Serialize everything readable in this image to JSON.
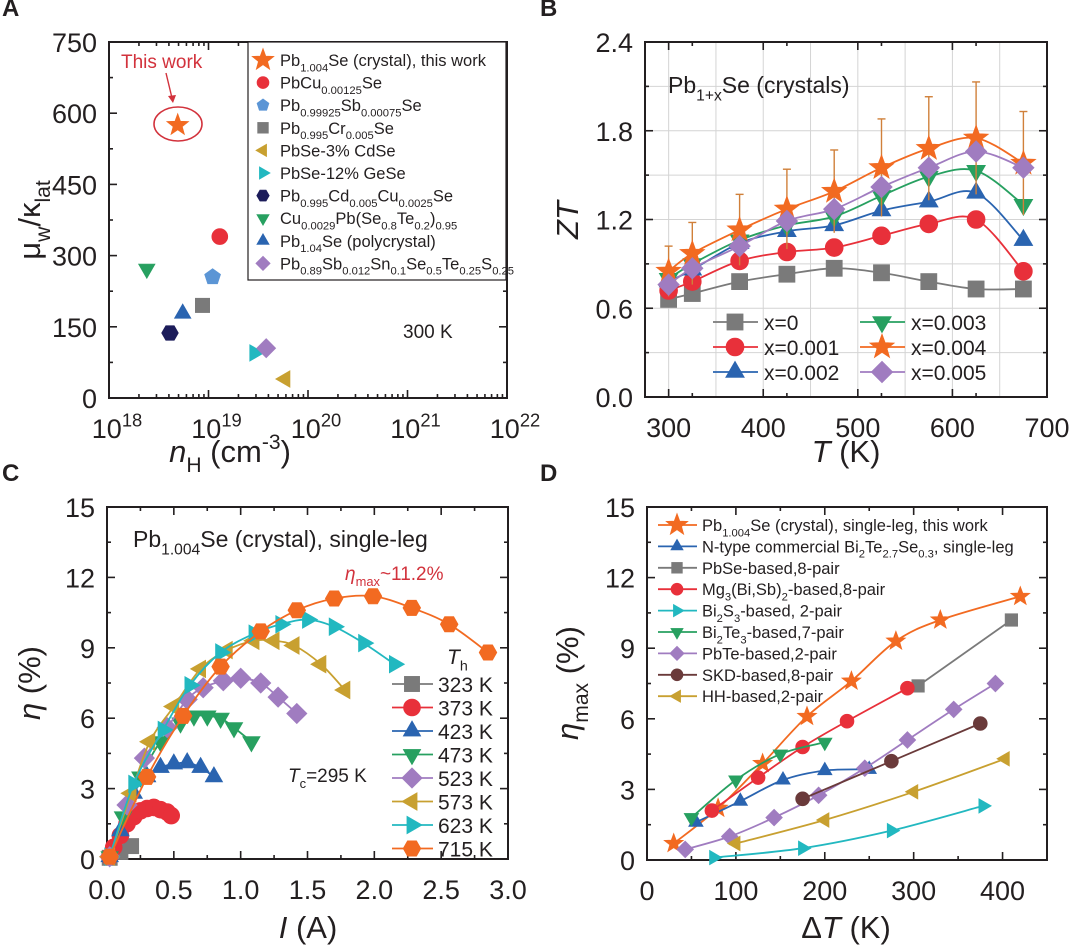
{
  "chart_data": [
    {
      "panel_label": "A",
      "type": "scatter",
      "xlabel": "*{n}_{H} (cm^{-3})",
      "ylabel": "μ_{w}/κ_{lat}",
      "xscale": "log",
      "xlim": [
        1e+18,
        1e+22
      ],
      "ylim": [
        0,
        750
      ],
      "xticklabels": [
        "10^{18}",
        "10^{19}",
        "10^{20}",
        "10^{21}",
        "10^{22}"
      ],
      "yticks": [
        0,
        150,
        300,
        450,
        600,
        750
      ],
      "grid": false,
      "legend": "top-right",
      "annotations": {
        "this_work": "This work",
        "temperature": "300 K"
      },
      "series": [
        {
          "name": "Pb_{1.004}Se (crystal), this work",
          "color": "#f26a21",
          "marker": "star",
          "x": [
            4.9e+18
          ],
          "y": [
            575
          ]
        },
        {
          "name": "PbCu_{0.00125}Se",
          "color": "#e8303a",
          "marker": "circle",
          "x": [
            1.3e+19
          ],
          "y": [
            340
          ]
        },
        {
          "name": "Pb_{0.99925}Sb_{0.00075}Se",
          "color": "#5b95d5",
          "marker": "pentagon",
          "x": [
            1.1e+19
          ],
          "y": [
            255
          ]
        },
        {
          "name": "Pb_{0.995}Cr_{0.005}Se",
          "color": "#7a7a7a",
          "marker": "square",
          "x": [
            8.7e+18
          ],
          "y": [
            195
          ]
        },
        {
          "name": "PbSe-3% CdSe",
          "color": "#c8a030",
          "marker": "tri-left",
          "x": [
            5.9e+19
          ],
          "y": [
            40
          ]
        },
        {
          "name": "PbSe-12% GeSe",
          "color": "#22b8c0",
          "marker": "tri-right",
          "x": [
            2.9e+19
          ],
          "y": [
            95
          ]
        },
        {
          "name": "Pb_{0.995}Cd_{0.005}Cu_{0.0025}Se",
          "color": "#1c1c5a",
          "marker": "hexagon",
          "x": [
            4.1e+18
          ],
          "y": [
            137
          ]
        },
        {
          "name": "Cu_{0.0029}Pb(Se_{0.8}Te_{0.2})_{0.95}",
          "color": "#27a060",
          "marker": "tri-down",
          "x": [
            2.4e+18
          ],
          "y": [
            272
          ]
        },
        {
          "name": "Pb_{1.04}Se (polycrystal)",
          "color": "#2a64b0",
          "marker": "tri-up",
          "x": [
            5.5e+18
          ],
          "y": [
            178
          ]
        },
        {
          "name": "Pb_{0.89}Sb_{0.012}Sn_{0.1}Se_{0.5}Te_{0.25}S_{0.25}",
          "color": "#a07cc0",
          "marker": "diamond",
          "x": [
            3.8e+19
          ],
          "y": [
            105
          ]
        }
      ]
    },
    {
      "panel_label": "B",
      "type": "line",
      "title": "Pb_{1+x}Se (crystals)",
      "xlabel": "*{T} (K)",
      "ylabel": "*{ZT}",
      "xlim": [
        275,
        700
      ],
      "ylim": [
        0,
        2.4
      ],
      "xticks": [
        300,
        400,
        500,
        600,
        700
      ],
      "yticks": [
        "0.0",
        "0.6",
        "1.2",
        "1.8",
        "2.4"
      ],
      "grid": true,
      "legend": "bottom",
      "x": [
        300,
        325,
        375,
        425,
        475,
        525,
        575,
        625,
        675
      ],
      "series": [
        {
          "name": "x=0",
          "color": "#7a7a7a",
          "marker": "square",
          "values": [
            0.66,
            0.7,
            0.78,
            0.83,
            0.87,
            0.84,
            0.78,
            0.73,
            0.73
          ]
        },
        {
          "name": "x=0.001",
          "color": "#e8303a",
          "marker": "circle",
          "values": [
            0.72,
            0.78,
            0.92,
            0.98,
            1.01,
            1.09,
            1.17,
            1.2,
            0.85
          ]
        },
        {
          "name": "x=0.002",
          "color": "#2a64b0",
          "marker": "tri-up",
          "values": [
            0.78,
            0.86,
            1.04,
            1.12,
            1.16,
            1.26,
            1.32,
            1.38,
            1.06
          ]
        },
        {
          "name": "x=0.003",
          "color": "#27a060",
          "marker": "tri-down",
          "values": [
            0.8,
            0.9,
            1.06,
            1.16,
            1.22,
            1.36,
            1.49,
            1.53,
            1.3
          ]
        },
        {
          "name": "x=0.004",
          "color": "#f26a21",
          "marker": "star",
          "values": [
            0.85,
            0.97,
            1.13,
            1.27,
            1.39,
            1.55,
            1.68,
            1.75,
            1.58
          ],
          "yerr": [
            0.17,
            0.21,
            0.24,
            0.27,
            0.28,
            0.33,
            0.35,
            0.38,
            0.35
          ]
        },
        {
          "name": "x=0.005",
          "color": "#a07cc0",
          "marker": "diamond",
          "values": [
            0.76,
            0.87,
            1.02,
            1.19,
            1.27,
            1.42,
            1.55,
            1.66,
            1.55
          ]
        }
      ]
    },
    {
      "panel_label": "C",
      "type": "line",
      "title": "Pb_{1.004}Se (crystal), single-leg",
      "xlabel": "*{I} (A)",
      "ylabel": "*{η} (%)",
      "xlim": [
        0,
        3
      ],
      "ylim": [
        0,
        15
      ],
      "xticks": [
        "0.0",
        "0.5",
        "1.0",
        "1.5",
        "2.0",
        "2.5",
        "3.0"
      ],
      "yticks": [
        0,
        3,
        6,
        9,
        12,
        15
      ],
      "grid": false,
      "legend": "right",
      "legend_title": "*{T}_{h}",
      "annotations": {
        "eta_max": "*{η}_{max}~11.2%",
        "t_cold": "*{T}_{c}=295 K"
      },
      "series": [
        {
          "name": "323 K",
          "color": "#7a7a7a",
          "marker": "square",
          "x": [
            0.02,
            0.1,
            0.18
          ],
          "y": [
            0.05,
            0.3,
            0.55
          ]
        },
        {
          "name": "373 K",
          "color": "#e8303a",
          "marker": "circle",
          "x": [
            0.02,
            0.05,
            0.1,
            0.15,
            0.2,
            0.25,
            0.3,
            0.35,
            0.4,
            0.45,
            0.48
          ],
          "y": [
            0.1,
            0.5,
            1.0,
            1.5,
            1.8,
            2.05,
            2.15,
            2.2,
            2.1,
            2.0,
            1.85
          ]
        },
        {
          "name": "423 K",
          "color": "#2a64b0",
          "marker": "tri-up",
          "x": [
            0.02,
            0.1,
            0.2,
            0.3,
            0.4,
            0.5,
            0.6,
            0.7,
            0.8
          ],
          "y": [
            0.1,
            1.2,
            2.8,
            3.5,
            3.9,
            4.05,
            4.1,
            3.9,
            3.5
          ]
        },
        {
          "name": "473 K",
          "color": "#27a060",
          "marker": "tri-down",
          "x": [
            0.02,
            0.12,
            0.25,
            0.4,
            0.55,
            0.65,
            0.75,
            0.85,
            0.95,
            1.08
          ],
          "y": [
            0.1,
            1.8,
            3.5,
            5.0,
            5.8,
            6.1,
            6.1,
            6.0,
            5.6,
            5.0
          ]
        },
        {
          "name": "523 K",
          "color": "#a07cc0",
          "marker": "diamond",
          "x": [
            0.02,
            0.15,
            0.28,
            0.45,
            0.6,
            0.72,
            0.87,
            1.0,
            1.15,
            1.28,
            1.42
          ],
          "y": [
            0.1,
            2.3,
            4.3,
            5.6,
            6.8,
            7.3,
            7.6,
            7.7,
            7.5,
            6.9,
            6.2
          ]
        },
        {
          "name": "573 K",
          "color": "#c8a030",
          "marker": "tri-left",
          "x": [
            0.02,
            0.18,
            0.32,
            0.5,
            0.7,
            0.9,
            1.1,
            1.25,
            1.4,
            1.6,
            1.78
          ],
          "y": [
            0.1,
            2.8,
            5.0,
            6.5,
            8.1,
            8.9,
            9.3,
            9.3,
            9.1,
            8.3,
            7.2
          ]
        },
        {
          "name": "623 K",
          "color": "#22b8c0",
          "marker": "tri-right",
          "x": [
            0.02,
            0.2,
            0.42,
            0.62,
            0.85,
            1.1,
            1.3,
            1.5,
            1.7,
            1.92,
            2.15
          ],
          "y": [
            0.1,
            3.2,
            5.5,
            7.4,
            8.8,
            9.6,
            10.0,
            10.2,
            9.9,
            9.2,
            8.3
          ]
        },
        {
          "name": "715 K",
          "color": "#f26a21",
          "marker": "hexagon",
          "x": [
            0.02,
            0.3,
            0.57,
            0.85,
            1.15,
            1.42,
            1.7,
            1.99,
            2.28,
            2.56,
            2.85
          ],
          "y": [
            0.1,
            3.5,
            6.1,
            8.2,
            9.7,
            10.6,
            11.1,
            11.2,
            10.7,
            10.0,
            8.8
          ]
        }
      ]
    },
    {
      "panel_label": "D",
      "type": "line",
      "xlabel": "Δ*{T} (K)",
      "ylabel": "*{η}_{max} (%)",
      "xlim": [
        0,
        450
      ],
      "ylim": [
        0,
        15
      ],
      "xticks": [
        0,
        100,
        200,
        300,
        400
      ],
      "yticks": [
        0,
        3,
        6,
        9,
        12,
        15
      ],
      "grid": false,
      "legend": "top-left",
      "series": [
        {
          "name": "Pb_{1.004}Se (crystal), single-leg, this work",
          "color": "#f26a21",
          "marker": "star",
          "x": [
            30,
            80,
            130,
            180,
            230,
            280,
            330,
            420
          ],
          "y": [
            0.7,
            2.2,
            4.1,
            6.1,
            7.6,
            9.3,
            10.2,
            11.2
          ]
        },
        {
          "name": "N-type commercial Bi_{2}Te_{2.7}Se_{0.3}, single-leg",
          "color": "#2a64b0",
          "marker": "tri-up",
          "x": [
            55,
            105,
            153,
            200,
            250
          ],
          "y": [
            1.6,
            2.5,
            3.4,
            3.8,
            3.85
          ]
        },
        {
          "name": "PbSe-based,8-pair",
          "color": "#7a7a7a",
          "marker": "square",
          "x": [
            305,
            410
          ],
          "y": [
            7.4,
            10.2
          ]
        },
        {
          "name": "Mg_{3}(Bi,Sb)_{2}-based,8-pair",
          "color": "#e8303a",
          "marker": "circle",
          "x": [
            73,
            125,
            175,
            225,
            293
          ],
          "y": [
            2.1,
            3.5,
            4.8,
            5.9,
            7.3
          ]
        },
        {
          "name": "Bi_{2}S_{3}-based, 2-pair",
          "color": "#22b8c0",
          "marker": "tri-right",
          "x": [
            75,
            175,
            275,
            378
          ],
          "y": [
            0.1,
            0.5,
            1.25,
            2.3
          ]
        },
        {
          "name": "Bi_{2}Te_{3}-based,7-pair",
          "color": "#27a060",
          "marker": "tri-down",
          "x": [
            50,
            100,
            150,
            200
          ],
          "y": [
            1.8,
            3.4,
            4.5,
            5.0
          ]
        },
        {
          "name": "PbTe-based,2-pair",
          "color": "#a07cc0",
          "marker": "diamond",
          "x": [
            43,
            93,
            143,
            193,
            245,
            293,
            345,
            392
          ],
          "y": [
            0.45,
            1.0,
            1.8,
            2.75,
            3.9,
            5.1,
            6.4,
            7.5
          ]
        },
        {
          "name": "SKD-based,8-pair",
          "color": "#6a3a3a",
          "marker": "circle",
          "x": [
            175,
            275,
            375
          ],
          "y": [
            2.6,
            4.2,
            5.8
          ]
        },
        {
          "name": "HH-based,2-pair",
          "color": "#c8a030",
          "marker": "tri-left",
          "x": [
            100,
            200,
            300,
            403
          ],
          "y": [
            0.7,
            1.7,
            2.9,
            4.3
          ]
        }
      ]
    }
  ]
}
